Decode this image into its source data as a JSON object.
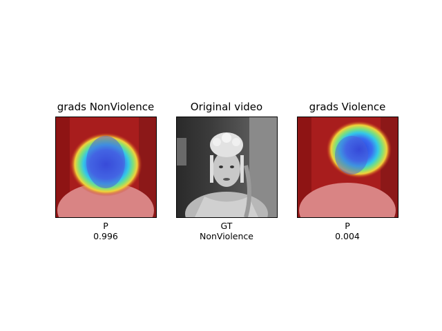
{
  "panels": [
    {
      "title": "grads NonViolence",
      "caption_label": "P",
      "caption_value": "0.996",
      "overlay": "heatmap"
    },
    {
      "title": "Original video",
      "caption_label": "GT",
      "caption_value": "NonViolence",
      "overlay": "none"
    },
    {
      "title": "grads Violence",
      "caption_label": "P",
      "caption_value": "0.004",
      "overlay": "heatmap"
    }
  ],
  "colors": {
    "heat_low": "#b41414",
    "heat_mid": "#f2d23a",
    "heat_high": "#2a3fe0",
    "frame_border": "#000000"
  }
}
